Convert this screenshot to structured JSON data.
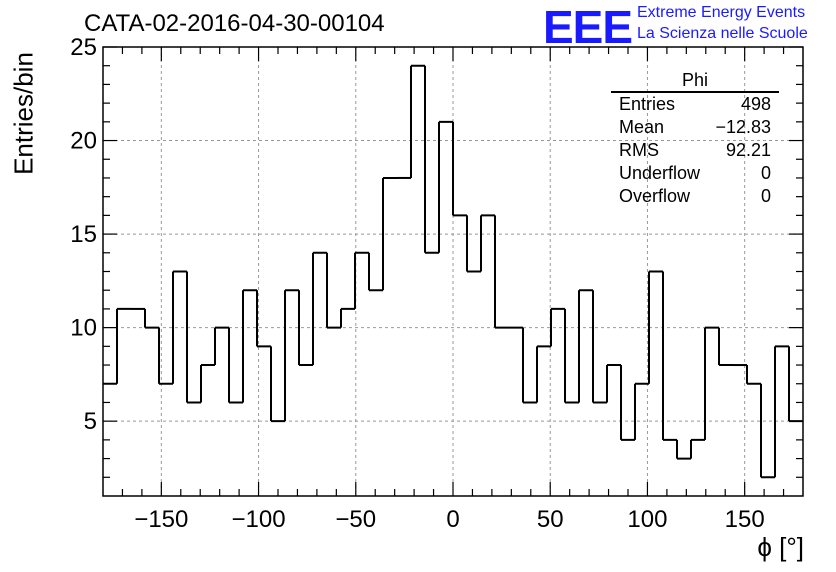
{
  "header": {
    "title": "CATA-02-2016-04-30-00104",
    "logo_text": "EEE",
    "logo_line1": "Extreme Energy Events",
    "logo_line2": "La Scienza nelle Scuole",
    "logo_color": "#1a1aff"
  },
  "stats_box": {
    "name": "Phi",
    "rows": [
      {
        "label": "Entries",
        "value": "498"
      },
      {
        "label": "Mean",
        "value": "−12.83"
      },
      {
        "label": "RMS",
        "value": "92.21"
      },
      {
        "label": "Underflow",
        "value": "0"
      },
      {
        "label": "Overflow",
        "value": "0"
      }
    ]
  },
  "chart_data": {
    "type": "bar",
    "style": "step-histogram",
    "xlabel": "ϕ [°]",
    "ylabel": "Entries/bin",
    "xlim": [
      -180,
      180
    ],
    "ylim": [
      1,
      25
    ],
    "grid": true,
    "bin_width": 7.2,
    "bin_edges_start": -180,
    "values": [
      7,
      11,
      11,
      10,
      7,
      13,
      6,
      8,
      10,
      6,
      12,
      9,
      5,
      12,
      8,
      14,
      10,
      11,
      14,
      12,
      18,
      18,
      24,
      14,
      21,
      16,
      13,
      16,
      10,
      10,
      6,
      9,
      11,
      6,
      12,
      6,
      8,
      4,
      7,
      13,
      4,
      3,
      4,
      10,
      8,
      8,
      7,
      2,
      9,
      5
    ],
    "x_ticks": [
      -150,
      -100,
      -50,
      0,
      50,
      100,
      150
    ],
    "x_tick_labels": [
      "−150",
      "−100",
      "−50",
      "0",
      "50",
      "100",
      "150"
    ],
    "y_ticks": [
      5,
      10,
      15,
      20,
      25
    ],
    "y_tick_labels": [
      "5",
      "10",
      "15",
      "20",
      "25"
    ],
    "line_color": "#000000",
    "grid_color": "#999999"
  }
}
